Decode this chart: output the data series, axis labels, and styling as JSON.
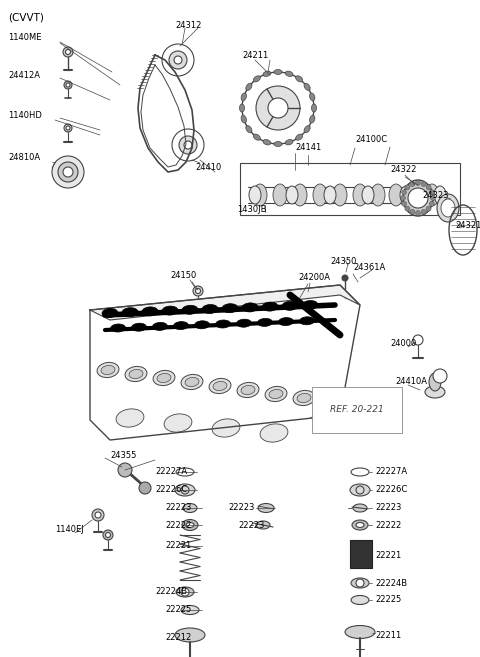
{
  "bg_color": "#ffffff",
  "fig_width": 4.8,
  "fig_height": 6.57,
  "dpi": 100,
  "lc": "#444444",
  "fs": 6.0,
  "xlim": [
    0,
    480
  ],
  "ylim": [
    657,
    0
  ]
}
